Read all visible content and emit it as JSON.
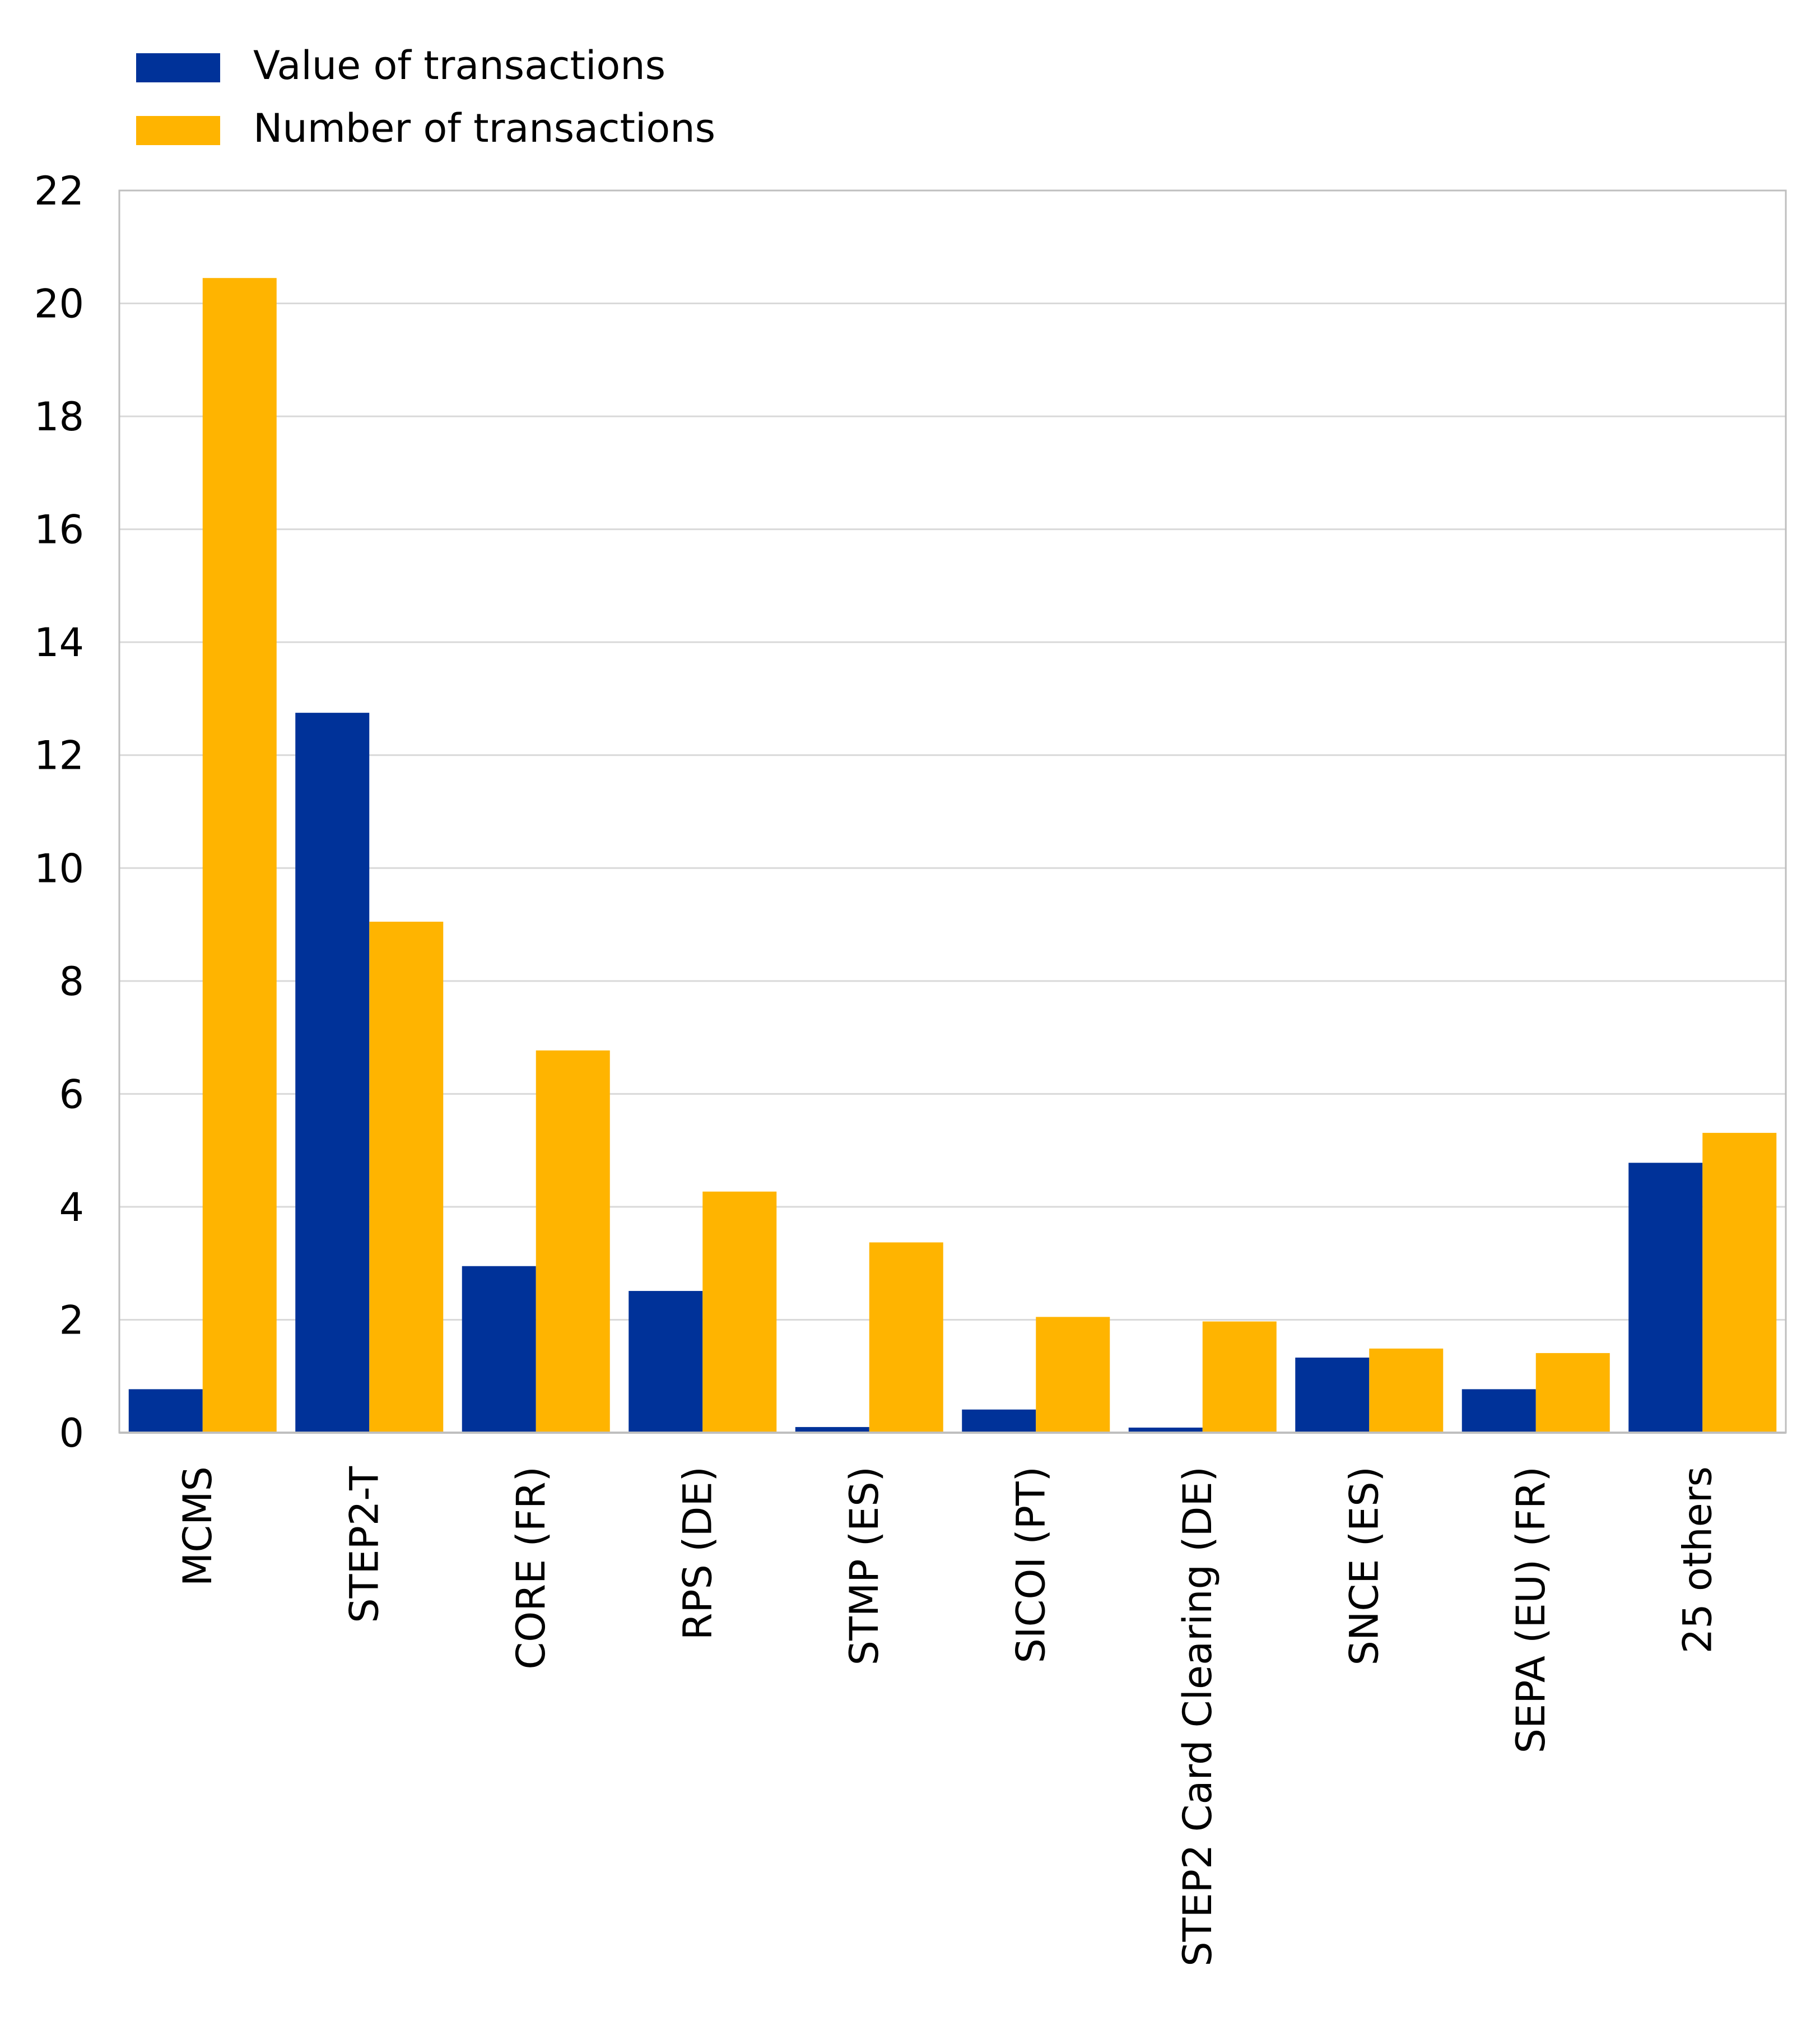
{
  "chart_data": {
    "type": "bar",
    "title": "",
    "xlabel": "",
    "ylabel": "",
    "ylim": [
      0,
      22
    ],
    "yticks": [
      0,
      2,
      4,
      6,
      8,
      10,
      12,
      14,
      16,
      18,
      20,
      22
    ],
    "grid": true,
    "legend_position": "top-left",
    "categories": [
      "MCMS",
      "STEP2-T",
      "CORE (FR)",
      "RPS (DE)",
      "STMP (ES)",
      "SICOI (PT)",
      "STEP2 Card Clearing (DE)",
      "SNCE (ES)",
      "SEPA (EU) (FR)",
      "25 others"
    ],
    "series": [
      {
        "name": "Value of transactions",
        "color": "#003299",
        "values": [
          0.77,
          12.75,
          2.95,
          2.51,
          0.1,
          0.41,
          0.09,
          1.33,
          0.77,
          4.78
        ]
      },
      {
        "name": "Number of transactions",
        "color": "#FFB400",
        "values": [
          20.45,
          9.05,
          6.77,
          4.27,
          3.37,
          2.05,
          1.97,
          1.49,
          1.41,
          5.31
        ]
      }
    ]
  }
}
